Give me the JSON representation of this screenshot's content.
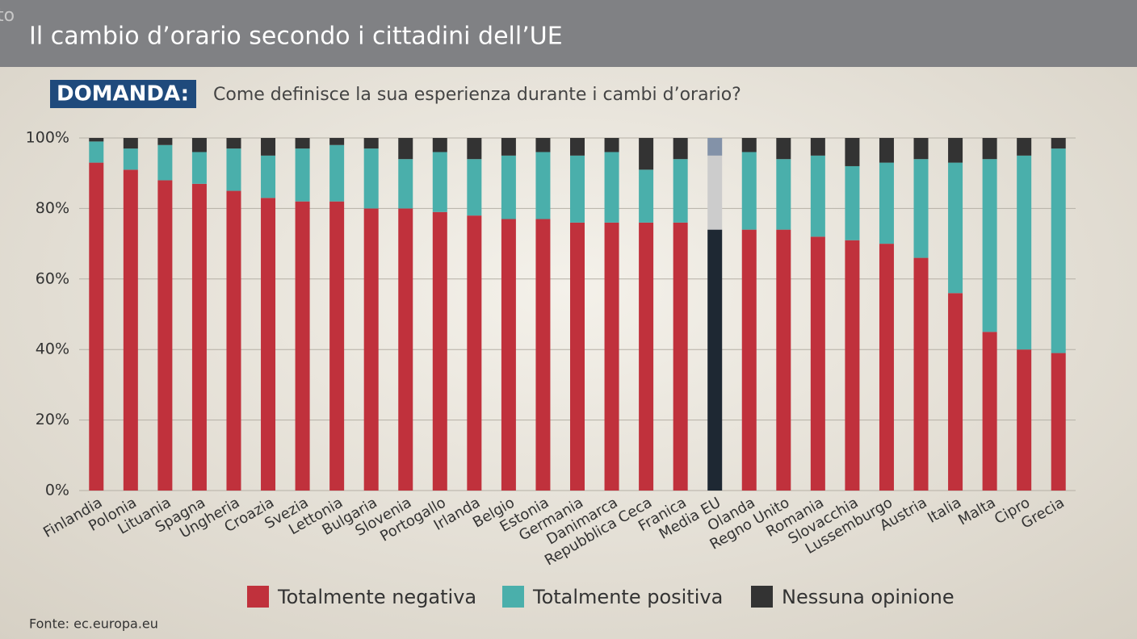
{
  "corner_text": "to",
  "chart_data": {
    "type": "stacked-bar",
    "title": "Il cambio d’orario secondo i cittadini dell’UE",
    "question_label": "DOMANDA:",
    "subtitle": "Come definisce la sua esperienza durante i cambi d’orario?",
    "source": "Fonte: ec.europa.eu",
    "categories": [
      "Finlandia",
      "Polonia",
      "Lituania",
      "Spagna",
      "Ungheria",
      "Croazia",
      "Svezia",
      "Lettonia",
      "Bulgaria",
      "Slovenia",
      "Portogallo",
      "Irlanda",
      "Belgio",
      "Estonia",
      "Germania",
      "Danimarca",
      "Repubblica Ceca",
      "Franica",
      "Media EU",
      "Olanda",
      "Regno Unito",
      "Romania",
      "Slovacchia",
      "Lussemburgo",
      "Austria",
      "Italia",
      "Malta",
      "Cipro",
      "Grecia"
    ],
    "highlight": "Media EU",
    "series": [
      {
        "name": "Totalmente negativa",
        "color": "#c0313c",
        "highlight_color": "#1e2833",
        "values": [
          93,
          91,
          88,
          87,
          85,
          83,
          82,
          82,
          80,
          80,
          79,
          78,
          77,
          77,
          76,
          76,
          76,
          76,
          74,
          74,
          74,
          72,
          71,
          70,
          66,
          56,
          45,
          40,
          39
        ]
      },
      {
        "name": "Totalmente positiva",
        "color": "#4aafab",
        "highlight_color": "#cccccc",
        "values": [
          6,
          6,
          10,
          9,
          12,
          12,
          15,
          16,
          17,
          14,
          17,
          16,
          18,
          19,
          19,
          20,
          15,
          18,
          21,
          22,
          20,
          23,
          21,
          23,
          28,
          37,
          49,
          55,
          58
        ]
      },
      {
        "name": "Nessuna opinione",
        "color": "#333333",
        "highlight_color": "#8392a8",
        "values": [
          1,
          3,
          2,
          4,
          3,
          5,
          3,
          2,
          3,
          6,
          4,
          6,
          5,
          4,
          5,
          4,
          9,
          6,
          5,
          4,
          6,
          5,
          8,
          7,
          6,
          7,
          6,
          5,
          3
        ]
      }
    ],
    "ylim": [
      0,
      100
    ],
    "yticks": [
      {
        "value": 0,
        "label": "0%"
      },
      {
        "value": 20,
        "label": "20%"
      },
      {
        "value": 40,
        "label": "40%"
      },
      {
        "value": 60,
        "label": "60%"
      },
      {
        "value": 80,
        "label": "80%"
      },
      {
        "value": 100,
        "label": "100%"
      }
    ],
    "grid": true,
    "legend": "bottom"
  }
}
